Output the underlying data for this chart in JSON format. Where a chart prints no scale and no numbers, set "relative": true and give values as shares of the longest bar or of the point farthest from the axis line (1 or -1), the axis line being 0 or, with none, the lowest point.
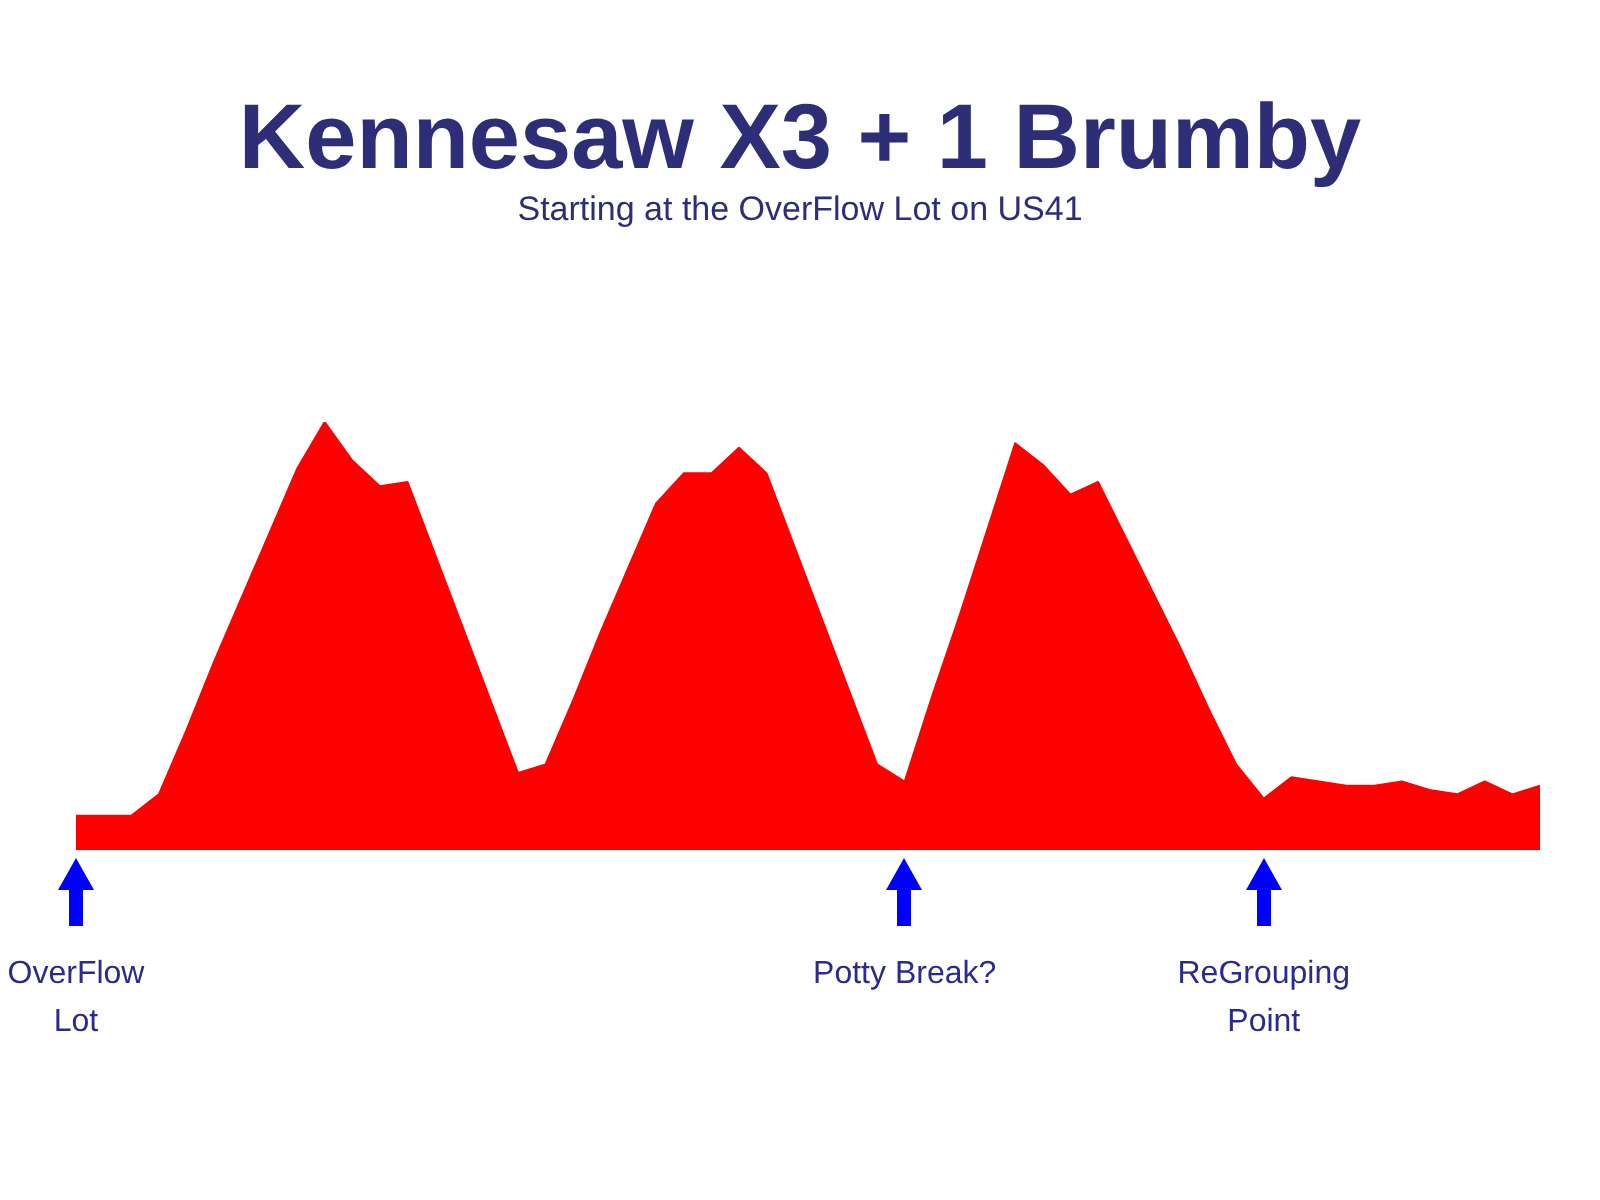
{
  "chart_data": {
    "type": "area",
    "title": "Kennesaw X3 + 1 Brumby",
    "subtitle": "Starting at the OverFlow Lot on US41",
    "relative": true,
    "color": "#ff0000",
    "categories": [
      "OverFlow\nLot",
      null,
      null,
      null,
      null,
      null,
      null,
      null,
      null,
      null,
      null,
      null,
      null,
      null,
      null,
      null,
      null,
      null,
      null,
      null,
      null,
      null,
      null,
      null,
      null,
      null,
      null,
      null,
      null,
      null,
      "Potty Break?",
      null,
      null,
      null,
      null,
      null,
      null,
      null,
      null,
      null,
      null,
      null,
      null,
      "ReGrouping\nPoint",
      null,
      null,
      null,
      null,
      null,
      null,
      null,
      null,
      null,
      null
    ],
    "values": [
      0.08,
      0.08,
      0.08,
      0.13,
      0.28,
      0.44,
      0.59,
      0.74,
      0.89,
      1.0,
      0.91,
      0.85,
      0.86,
      0.69,
      0.52,
      0.35,
      0.18,
      0.2,
      0.35,
      0.51,
      0.66,
      0.81,
      0.88,
      0.88,
      0.94,
      0.88,
      0.71,
      0.54,
      0.37,
      0.2,
      0.16,
      0.36,
      0.55,
      0.75,
      0.95,
      0.9,
      0.83,
      0.86,
      0.73,
      0.6,
      0.47,
      0.33,
      0.2,
      0.12,
      0.17,
      0.16,
      0.15,
      0.15,
      0.16,
      0.14,
      0.13,
      0.16,
      0.13,
      0.15
    ]
  }
}
